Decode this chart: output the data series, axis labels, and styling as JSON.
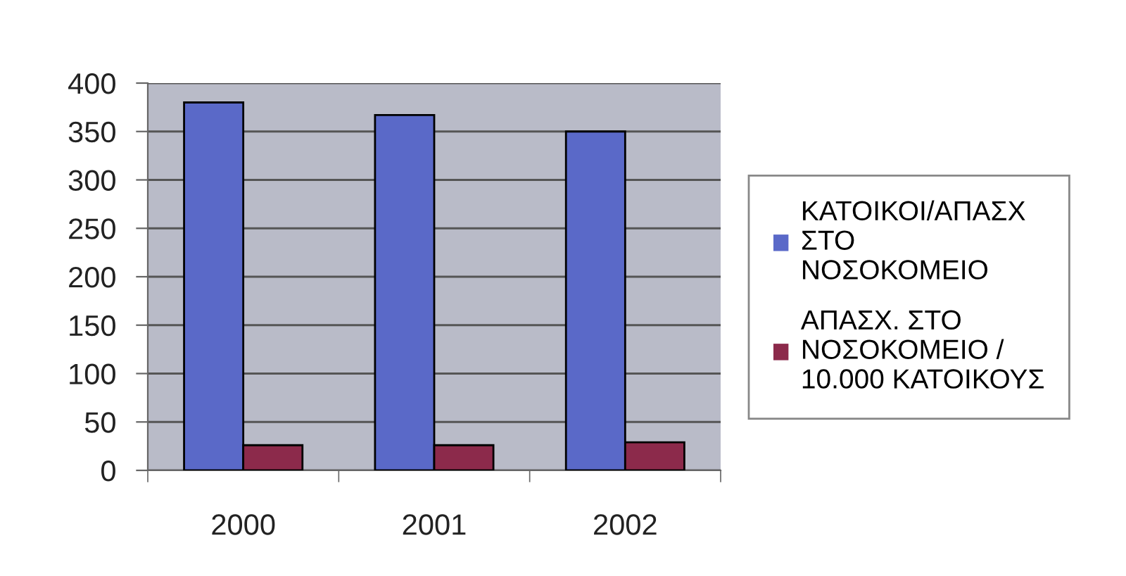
{
  "chart_data": {
    "type": "bar",
    "categories": [
      "2000",
      "2001",
      "2002"
    ],
    "series": [
      {
        "name": "ΚΑΤΟΙΚΟΙ/ΑΠΑΣΧ ΣΤΟ ΝΟΣΟΚΟΜΕΙΟ",
        "color": "#5a69c8",
        "values": [
          380,
          367,
          350
        ]
      },
      {
        "name": "ΑΠΑΣΧ. ΣΤΟ ΝΟΣΟΚΟΜΕΙΟ / 10.000 ΚΑΤΟΙΚΟΥΣ",
        "color": "#8c2a4b",
        "values": [
          26,
          26,
          29
        ]
      }
    ],
    "ylim": [
      0,
      400
    ],
    "yticks": [
      0,
      50,
      100,
      150,
      200,
      250,
      300,
      350,
      400
    ],
    "grid": "y",
    "legend": "right"
  }
}
